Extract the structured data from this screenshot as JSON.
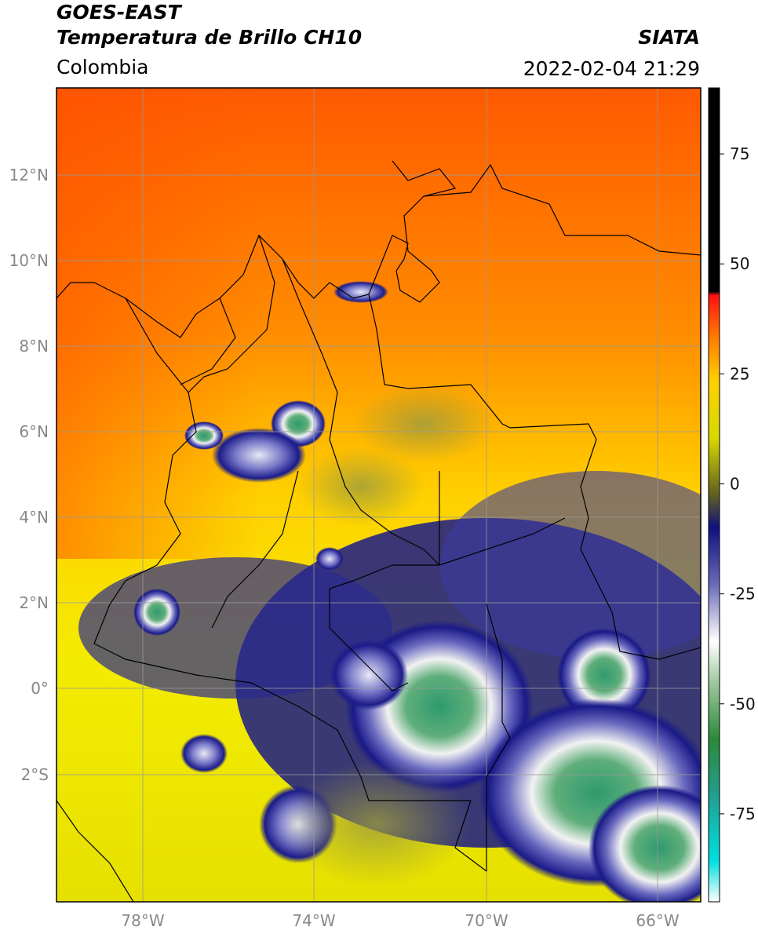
{
  "header": {
    "title_line1": "GOES-EAST",
    "title_line2": "Temperatura de Brillo CH10",
    "region": "Colombia",
    "credit": "SIATA",
    "timestamp": "2022-02-04 21:29"
  },
  "map": {
    "lat_ticks": [
      "12°N",
      "10°N",
      "8°N",
      "6°N",
      "4°N",
      "2°N",
      "0°",
      "2°S"
    ],
    "lon_ticks": [
      "78°W",
      "74°W",
      "70°W",
      "66°W"
    ]
  },
  "colorbar": {
    "labels": [
      "75",
      "50",
      "25",
      "0",
      "-25",
      "-50",
      "-75"
    ],
    "range": [
      -95,
      90
    ]
  }
}
